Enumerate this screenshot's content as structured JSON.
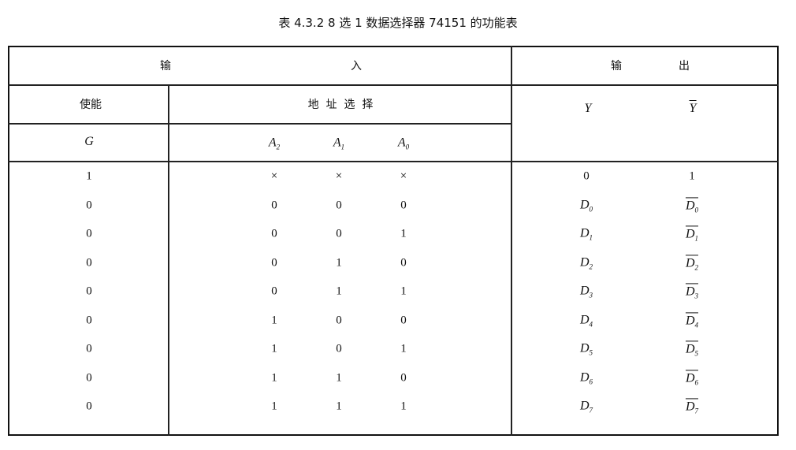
{
  "title": "表 4.3.2   8 选 1 数据选择器 74151 的功能表",
  "header": {
    "input_a": "输",
    "input_b": "入",
    "output_a": "输",
    "output_b": "出",
    "enable": "使能",
    "address": "地  址  选  择",
    "y": "Y",
    "ybar": "Y",
    "g": "G",
    "a2": "A",
    "a2_sub": "2",
    "a1": "A",
    "a1_sub": "1",
    "a0": "A",
    "a0_sub": "0"
  },
  "rows": [
    {
      "g": "1",
      "a2": "×",
      "a1": "×",
      "a0": "×",
      "y": "0",
      "ybar": "1"
    },
    {
      "g": "0",
      "a2": "0",
      "a1": "0",
      "a0": "0",
      "y": "D",
      "y_sub": "0",
      "ybar": "D",
      "ybar_sub": "0"
    },
    {
      "g": "0",
      "a2": "0",
      "a1": "0",
      "a0": "1",
      "y": "D",
      "y_sub": "1",
      "ybar": "D",
      "ybar_sub": "1"
    },
    {
      "g": "0",
      "a2": "0",
      "a1": "1",
      "a0": "0",
      "y": "D",
      "y_sub": "2",
      "ybar": "D",
      "ybar_sub": "2"
    },
    {
      "g": "0",
      "a2": "0",
      "a1": "1",
      "a0": "1",
      "y": "D",
      "y_sub": "3",
      "ybar": "D",
      "ybar_sub": "3"
    },
    {
      "g": "0",
      "a2": "1",
      "a1": "0",
      "a0": "0",
      "y": "D",
      "y_sub": "4",
      "ybar": "D",
      "ybar_sub": "4"
    },
    {
      "g": "0",
      "a2": "1",
      "a1": "0",
      "a0": "1",
      "y": "D",
      "y_sub": "5",
      "ybar": "D",
      "ybar_sub": "5"
    },
    {
      "g": "0",
      "a2": "1",
      "a1": "1",
      "a0": "0",
      "y": "D",
      "y_sub": "6",
      "ybar": "D",
      "ybar_sub": "6"
    },
    {
      "g": "0",
      "a2": "1",
      "a1": "1",
      "a0": "1",
      "y": "D",
      "y_sub": "7",
      "ybar": "D",
      "ybar_sub": "7"
    }
  ]
}
